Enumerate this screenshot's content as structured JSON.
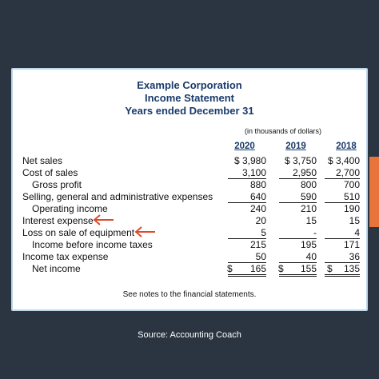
{
  "header": {
    "company": "Example Corporation",
    "statement": "Income Statement",
    "period": "Years ended December 31"
  },
  "units_note": "(in thousands of dollars)",
  "years": [
    "2020",
    "2019",
    "2018"
  ],
  "rows": [
    {
      "label": "Net sales",
      "values": [
        "$ 3,980",
        "$ 3,750",
        "$ 3,400"
      ]
    },
    {
      "label": "Cost of sales",
      "values": [
        "3,100",
        "2,950",
        "2,700"
      ]
    },
    {
      "label": "Gross profit",
      "values": [
        "880",
        "800",
        "700"
      ]
    },
    {
      "label": "Selling, general and administrative expenses",
      "values": [
        "640",
        "590",
        "510"
      ]
    },
    {
      "label": "Operating income",
      "values": [
        "240",
        "210",
        "190"
      ]
    },
    {
      "label": "Interest expense",
      "values": [
        "20",
        "15",
        "15"
      ]
    },
    {
      "label": "Loss on sale of equipment",
      "values": [
        "5",
        "-",
        "4"
      ]
    },
    {
      "label": "Income before income taxes",
      "values": [
        "215",
        "195",
        "171"
      ]
    },
    {
      "label": "Income tax expense",
      "values": [
        "50",
        "40",
        "36"
      ]
    },
    {
      "label": "Net income",
      "values": [
        "165",
        "155",
        "135"
      ]
    }
  ],
  "net_income_currency": "$",
  "footnote": "See notes to the financial statements.",
  "source": "Source: Accounting Coach",
  "colors": {
    "background": "#2b3542",
    "title": "#1a3a6b",
    "arrow": "#e04a2a",
    "accent": "#e8743b"
  }
}
